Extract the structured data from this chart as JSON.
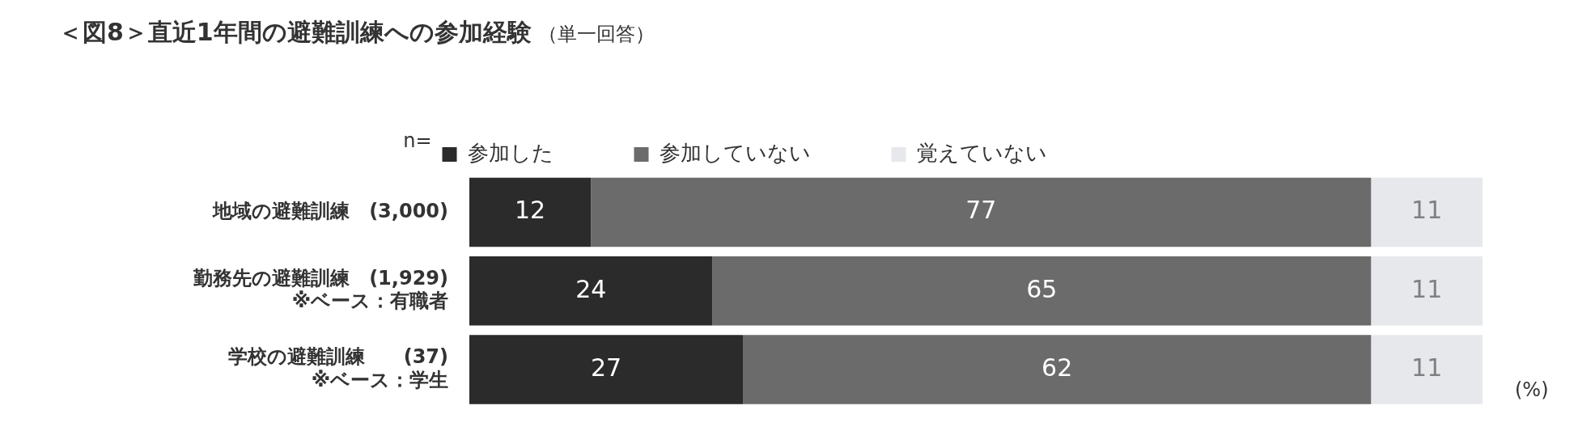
{
  "chart_data": {
    "type": "bar",
    "orientation": "horizontal",
    "stacked": true,
    "title": "＜図8＞直近1年間の避難訓練への参加経験",
    "subtitle": "（単一回答）",
    "categories": [
      "地域の避難訓練　(3,000)",
      "勤務先の避難訓練　(1,929)\n※ベース：有職者",
      "学校の避難訓練　　(37)\n※ベース：学生"
    ],
    "series": [
      {
        "name": "参加した",
        "color": "#2b2b2b",
        "values": [
          12,
          24,
          27
        ]
      },
      {
        "name": "参加していない",
        "color": "#6b6b6b",
        "values": [
          77,
          65,
          62
        ]
      },
      {
        "name": "覚えていない",
        "color": "#e6e8ec",
        "values": [
          11,
          11,
          11
        ]
      }
    ],
    "data_labels": true,
    "legend": "top",
    "annotations": [
      "n=",
      "(%)"
    ]
  }
}
